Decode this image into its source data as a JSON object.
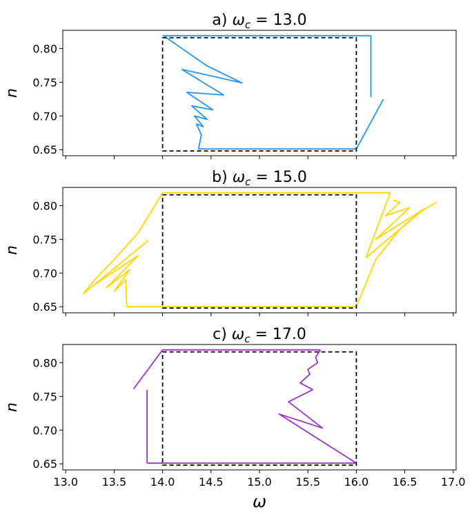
{
  "chart_data": [
    {
      "type": "line",
      "panel": "a",
      "title": "a) ω_c = 13.0",
      "title_prefix": "a) ",
      "title_omega": "ω",
      "title_sub": "c",
      "title_value": "13.0",
      "xlabel": "",
      "ylabel": "n",
      "xlim": [
        12.97,
        17.03
      ],
      "ylim": [
        0.641,
        0.827
      ],
      "xticks": [
        13.0,
        13.5,
        14.0,
        14.5,
        15.0,
        15.5,
        16.0,
        16.5,
        17.0
      ],
      "xtick_labels_shown": false,
      "yticks": [
        0.65,
        0.7,
        0.75,
        0.8
      ],
      "ytick_labels": [
        "0.65",
        "0.70",
        "0.75",
        "0.80"
      ],
      "color": "#2196f3",
      "reference_rect": {
        "x0": 14.0,
        "x1": 16.0,
        "y0": 0.648,
        "y1": 0.816,
        "style": "dashed",
        "color": "#000000"
      },
      "series": [
        {
          "name": "top_edge",
          "x": [
            14.0,
            16.15
          ],
          "y": [
            0.819,
            0.819
          ]
        },
        {
          "name": "right_drop",
          "x": [
            16.15,
            16.15
          ],
          "y": [
            0.819,
            0.728
          ]
        },
        {
          "name": "bottom_edge",
          "x": [
            14.37,
            16.0
          ],
          "y": [
            0.651,
            0.651
          ]
        },
        {
          "name": "right_rise",
          "x": [
            16.0,
            16.28
          ],
          "y": [
            0.651,
            0.725
          ]
        },
        {
          "name": "left_spiral",
          "x": [
            14.02,
            14.45,
            14.82,
            14.2,
            14.63,
            14.25,
            14.52,
            14.3,
            14.46,
            14.33,
            14.42,
            14.35,
            14.4,
            14.37
          ],
          "y": [
            0.818,
            0.775,
            0.749,
            0.769,
            0.731,
            0.735,
            0.709,
            0.715,
            0.695,
            0.7,
            0.684,
            0.688,
            0.672,
            0.651
          ]
        }
      ]
    },
    {
      "type": "line",
      "panel": "b",
      "title": "b) ω_c = 15.0",
      "title_prefix": "b) ",
      "title_omega": "ω",
      "title_sub": "c",
      "title_value": "15.0",
      "xlabel": "",
      "ylabel": "n",
      "xlim": [
        12.97,
        17.03
      ],
      "ylim": [
        0.641,
        0.827
      ],
      "xticks": [
        13.0,
        13.5,
        14.0,
        14.5,
        15.0,
        15.5,
        16.0,
        16.5,
        17.0
      ],
      "xtick_labels_shown": false,
      "yticks": [
        0.65,
        0.7,
        0.75,
        0.8
      ],
      "ytick_labels": [
        "0.65",
        "0.70",
        "0.75",
        "0.80"
      ],
      "color": "#ffd600",
      "reference_rect": {
        "x0": 14.0,
        "x1": 16.0,
        "y0": 0.648,
        "y1": 0.816,
        "style": "dashed",
        "color": "#000000"
      },
      "series": [
        {
          "name": "top_edge",
          "x": [
            14.0,
            16.35
          ],
          "y": [
            0.819,
            0.819
          ]
        },
        {
          "name": "bottom_edge",
          "x": [
            13.63,
            16.0
          ],
          "y": [
            0.65,
            0.65
          ]
        },
        {
          "name": "left_branch",
          "x": [
            14.0,
            13.75,
            13.5,
            13.3,
            13.18
          ],
          "y": [
            0.819,
            0.76,
            0.72,
            0.69,
            0.669
          ]
        },
        {
          "name": "right_branch",
          "x": [
            16.0,
            16.2,
            16.45,
            16.65,
            16.83
          ],
          "y": [
            0.65,
            0.72,
            0.765,
            0.79,
            0.805
          ]
        },
        {
          "name": "left_spiral",
          "x": [
            13.18,
            13.85,
            13.3,
            13.75,
            13.42,
            13.66,
            13.5,
            13.62,
            13.63
          ],
          "y": [
            0.669,
            0.748,
            0.683,
            0.726,
            0.678,
            0.705,
            0.673,
            0.69,
            0.65
          ]
        },
        {
          "name": "right_spiral",
          "x": [
            16.35,
            16.1,
            16.7,
            16.2,
            16.55,
            16.3,
            16.45,
            16.38
          ],
          "y": [
            0.819,
            0.723,
            0.795,
            0.75,
            0.797,
            0.785,
            0.805,
            0.808
          ]
        }
      ]
    },
    {
      "type": "line",
      "panel": "c",
      "title": "c) ω_c = 17.0",
      "title_prefix": "c) ",
      "title_omega": "ω",
      "title_sub": "c",
      "title_value": "17.0",
      "xlabel": "ω",
      "ylabel": "n",
      "xlim": [
        12.97,
        17.03
      ],
      "ylim": [
        0.641,
        0.827
      ],
      "xticks": [
        13.0,
        13.5,
        14.0,
        14.5,
        15.0,
        15.5,
        16.0,
        16.5,
        17.0
      ],
      "xtick_labels": [
        "13.0",
        "13.5",
        "14.0",
        "14.5",
        "15.0",
        "15.5",
        "16.0",
        "16.5",
        "17.0"
      ],
      "xtick_labels_shown": true,
      "yticks": [
        0.65,
        0.7,
        0.75,
        0.8
      ],
      "ytick_labels": [
        "0.65",
        "0.70",
        "0.75",
        "0.80"
      ],
      "color": "#9932cc",
      "reference_rect": {
        "x0": 14.0,
        "x1": 16.0,
        "y0": 0.648,
        "y1": 0.816,
        "style": "dashed",
        "color": "#000000"
      },
      "series": [
        {
          "name": "top_edge",
          "x": [
            14.0,
            15.63
          ],
          "y": [
            0.819,
            0.819
          ]
        },
        {
          "name": "bottom_edge",
          "x": [
            13.84,
            16.0
          ],
          "y": [
            0.651,
            0.651
          ]
        },
        {
          "name": "left_drop",
          "x": [
            13.84,
            13.84
          ],
          "y": [
            0.651,
            0.76
          ]
        },
        {
          "name": "left_rise",
          "x": [
            13.7,
            14.0
          ],
          "y": [
            0.761,
            0.819
          ]
        },
        {
          "name": "right_spiral",
          "x": [
            16.0,
            15.2,
            15.65,
            15.3,
            15.55,
            15.42,
            15.52,
            15.5,
            15.6,
            15.58,
            15.63
          ],
          "y": [
            0.651,
            0.724,
            0.703,
            0.742,
            0.76,
            0.77,
            0.783,
            0.79,
            0.8,
            0.808,
            0.819
          ]
        }
      ]
    }
  ]
}
